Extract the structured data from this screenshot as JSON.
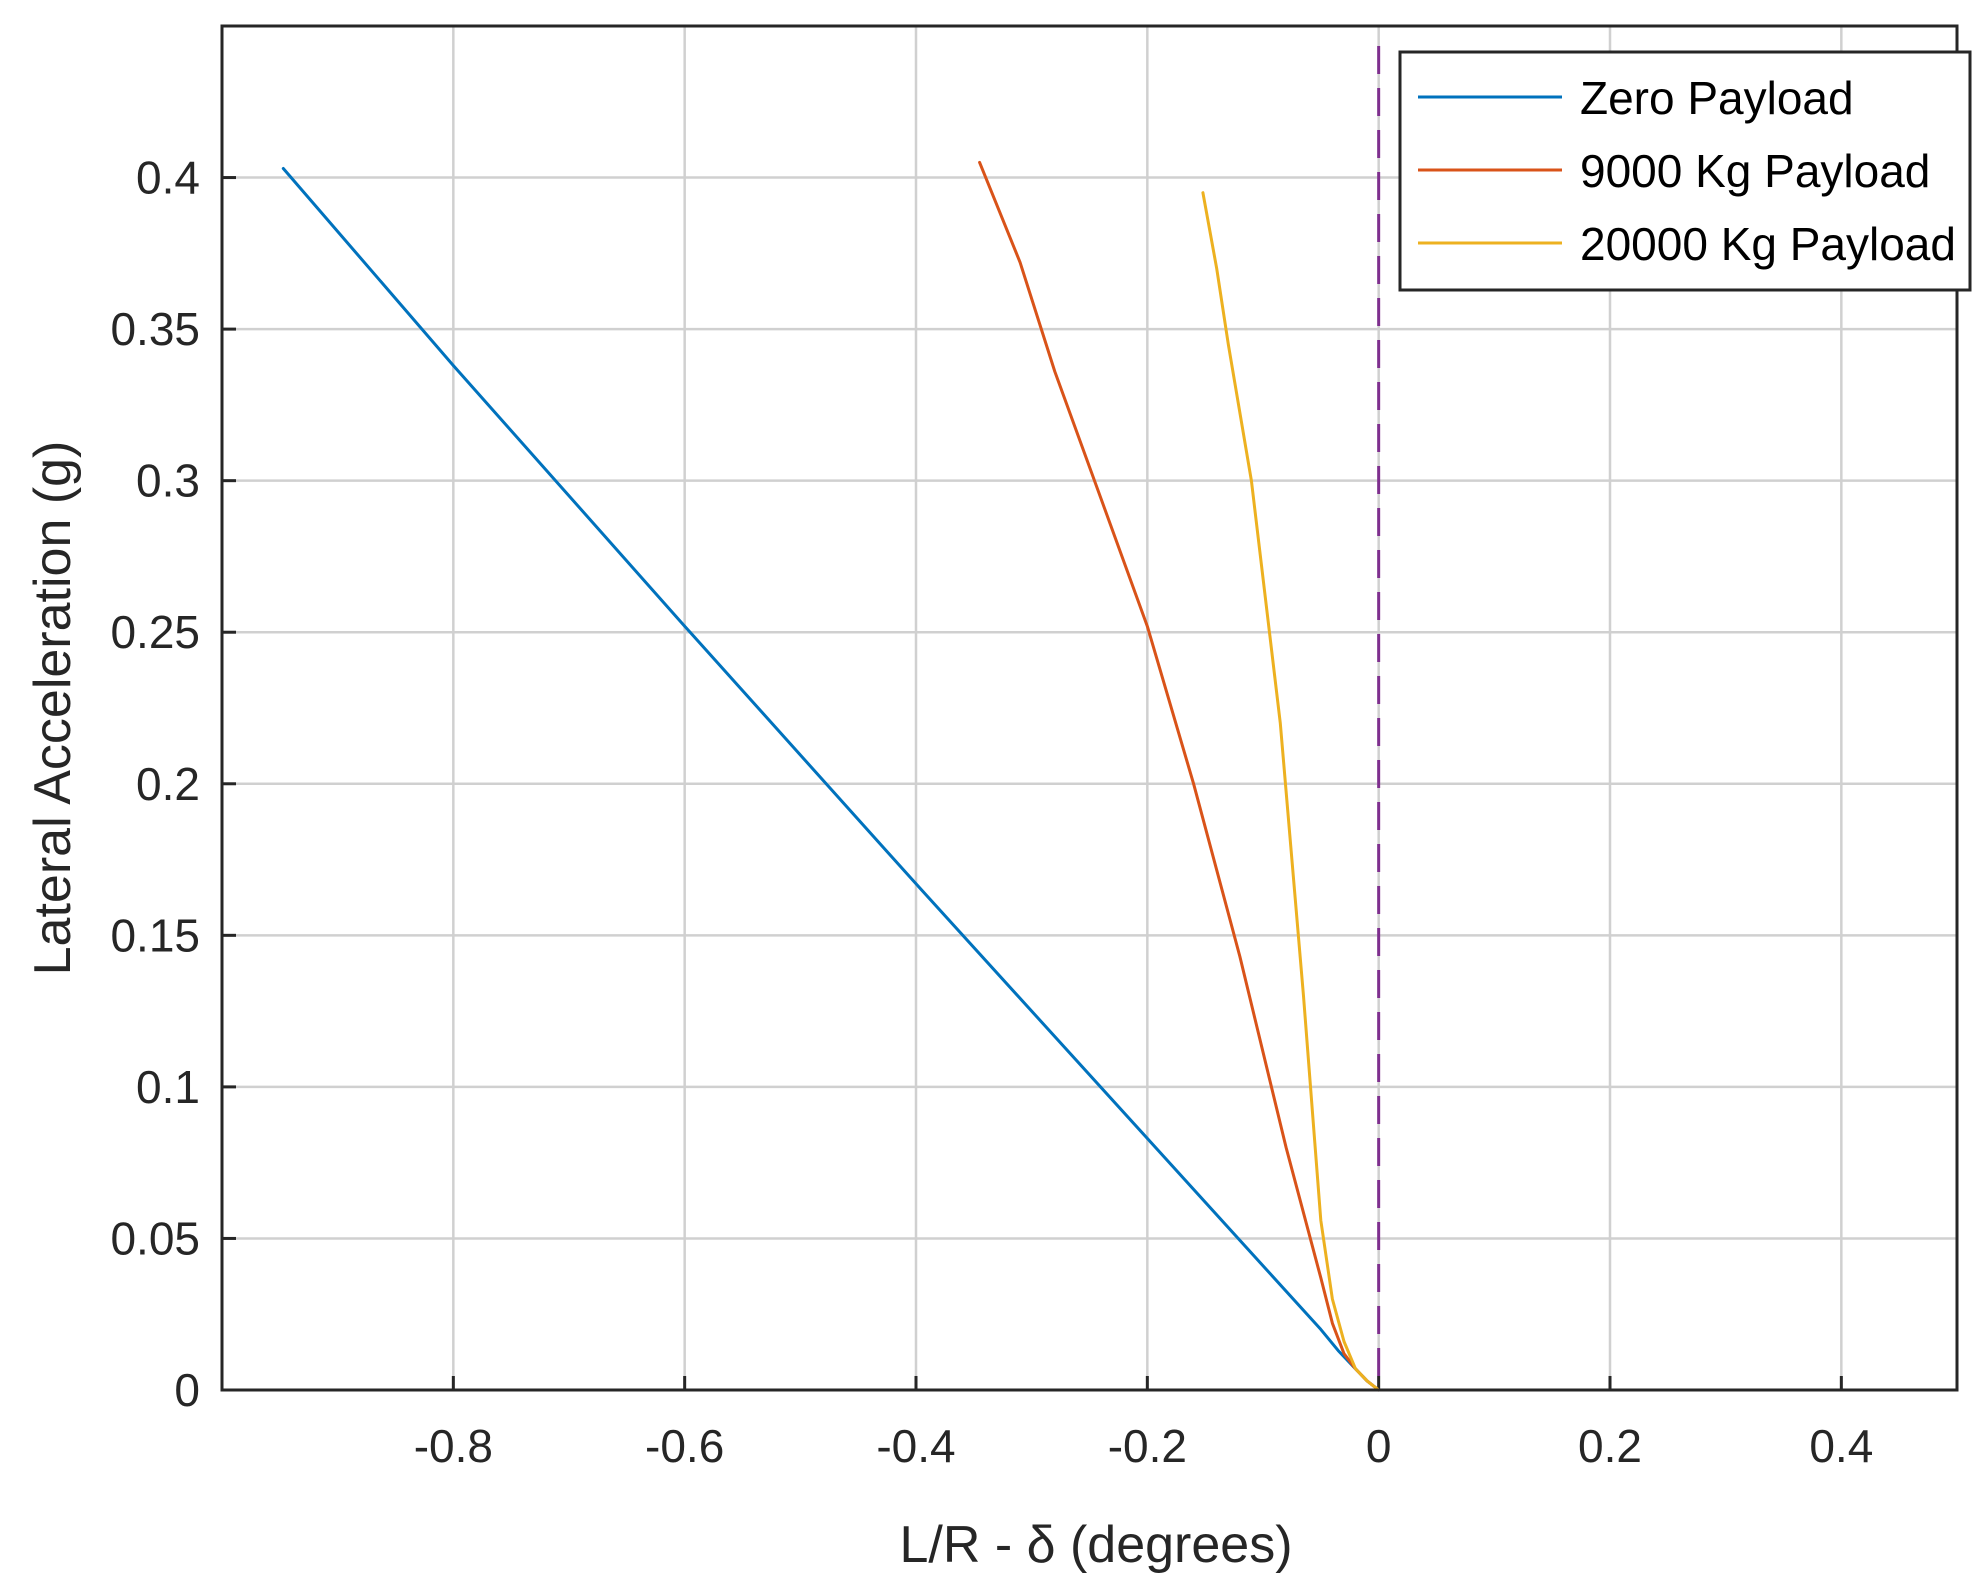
{
  "chart_data": {
    "type": "line",
    "title": "",
    "xlabel": "L/R - δ (degrees)",
    "ylabel": "Lateral Acceleration (g)",
    "xlim": [
      -1.0,
      0.5
    ],
    "ylim": [
      0,
      0.45
    ],
    "grid": true,
    "x_ticks": [
      -0.8,
      -0.6,
      -0.4,
      -0.2,
      0,
      0.2,
      0.4
    ],
    "x_tick_labels": [
      "-0.8",
      "-0.6",
      "-0.4",
      "-0.2",
      "0",
      "0.2",
      "0.4"
    ],
    "y_ticks": [
      0,
      0.05,
      0.1,
      0.15,
      0.2,
      0.25,
      0.3,
      0.35,
      0.4
    ],
    "y_tick_labels": [
      "0",
      "0.05",
      "0.1",
      "0.15",
      "0.2",
      "0.25",
      "0.3",
      "0.35",
      "0.4"
    ],
    "legend_position": "top-right",
    "series": [
      {
        "name": "Zero Payload",
        "color": "#0072bd",
        "x": [
          0,
          -0.01,
          -0.02,
          -0.035,
          -0.05,
          -0.2,
          -0.4,
          -0.6,
          -0.8,
          -0.947
        ],
        "y": [
          0,
          0.003,
          0.007,
          0.013,
          0.02,
          0.083,
          0.167,
          0.252,
          0.338,
          0.403
        ]
      },
      {
        "name": "9000 Kg Payload",
        "color": "#d95319",
        "x": [
          0,
          -0.01,
          -0.02,
          -0.03,
          -0.04,
          -0.05,
          -0.08,
          -0.12,
          -0.16,
          -0.2,
          -0.24,
          -0.28,
          -0.31,
          -0.345
        ],
        "y": [
          0,
          0.003,
          0.007,
          0.012,
          0.022,
          0.037,
          0.08,
          0.143,
          0.2,
          0.252,
          0.294,
          0.336,
          0.372,
          0.405
        ]
      },
      {
        "name": "20000 Kg Payload",
        "color": "#edb120",
        "x": [
          0,
          -0.01,
          -0.02,
          -0.03,
          -0.04,
          -0.05,
          -0.065,
          -0.085,
          -0.11,
          -0.13,
          -0.14,
          -0.152
        ],
        "y": [
          0,
          0.003,
          0.007,
          0.016,
          0.03,
          0.056,
          0.13,
          0.22,
          0.3,
          0.345,
          0.37,
          0.395
        ]
      }
    ],
    "reference_lines": [
      {
        "orientation": "vertical",
        "x": 0,
        "color": "#7e2f8e",
        "style": "dashed"
      }
    ]
  }
}
